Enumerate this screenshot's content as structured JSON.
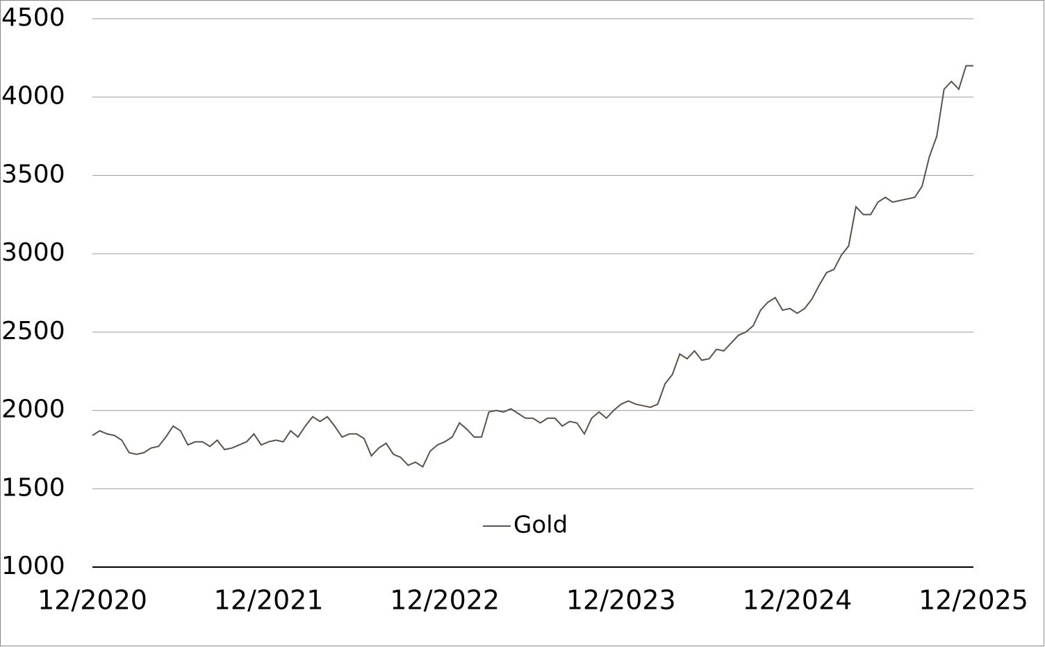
{
  "chart_data": {
    "type": "line",
    "categories": [
      "12/2020",
      null,
      null,
      null,
      null,
      null,
      null,
      null,
      null,
      null,
      null,
      null,
      null,
      null,
      null,
      null,
      null,
      null,
      null,
      null,
      null,
      null,
      null,
      null,
      "12/2021",
      null,
      null,
      null,
      null,
      null,
      null,
      null,
      null,
      null,
      null,
      null,
      null,
      null,
      null,
      null,
      null,
      null,
      null,
      null,
      null,
      null,
      null,
      null,
      "12/2022",
      null,
      null,
      null,
      null,
      null,
      null,
      null,
      null,
      null,
      null,
      null,
      null,
      null,
      null,
      null,
      null,
      null,
      null,
      null,
      null,
      null,
      null,
      null,
      "12/2023",
      null,
      null,
      null,
      null,
      null,
      null,
      null,
      null,
      null,
      null,
      null,
      null,
      null,
      null,
      null,
      null,
      null,
      null,
      null,
      null,
      null,
      null,
      null,
      "12/2024",
      null,
      null,
      null,
      null,
      null,
      null,
      null,
      null,
      null,
      null,
      null,
      null,
      null,
      null,
      null,
      null,
      null,
      null,
      null,
      null,
      null,
      null,
      null,
      "12/2025"
    ],
    "series": [
      {
        "name": "Gold",
        "color": "#5a524a",
        "values": [
          1840,
          1870,
          1850,
          1840,
          1810,
          1730,
          1720,
          1730,
          1760,
          1770,
          1830,
          1900,
          1870,
          1780,
          1800,
          1800,
          1770,
          1810,
          1750,
          1760,
          1780,
          1800,
          1850,
          1780,
          1800,
          1810,
          1800,
          1870,
          1830,
          1900,
          1960,
          1930,
          1960,
          1900,
          1830,
          1850,
          1850,
          1820,
          1710,
          1760,
          1790,
          1720,
          1700,
          1650,
          1670,
          1640,
          1740,
          1780,
          1800,
          1830,
          1920,
          1880,
          1830,
          1830,
          1990,
          2000,
          1990,
          2010,
          1980,
          1950,
          1950,
          1920,
          1950,
          1950,
          1900,
          1930,
          1920,
          1850,
          1950,
          1990,
          1950,
          2000,
          2040,
          2060,
          2040,
          2030,
          2020,
          2040,
          2170,
          2230,
          2360,
          2330,
          2380,
          2320,
          2330,
          2390,
          2380,
          2430,
          2480,
          2500,
          2540,
          2640,
          2690,
          2720,
          2640,
          2650,
          2620,
          2650,
          2710,
          2800,
          2880,
          2900,
          2990,
          3050,
          3300,
          3250,
          3250,
          3330,
          3360,
          3330,
          3340,
          3350,
          3360,
          3430,
          3620,
          3750,
          4050,
          4100,
          4050,
          4200,
          4200
        ]
      }
    ],
    "ylim": [
      1000,
      4500
    ],
    "yticks": [
      1000,
      1500,
      2000,
      2500,
      3000,
      3500,
      4000,
      4500
    ],
    "grid": true
  }
}
